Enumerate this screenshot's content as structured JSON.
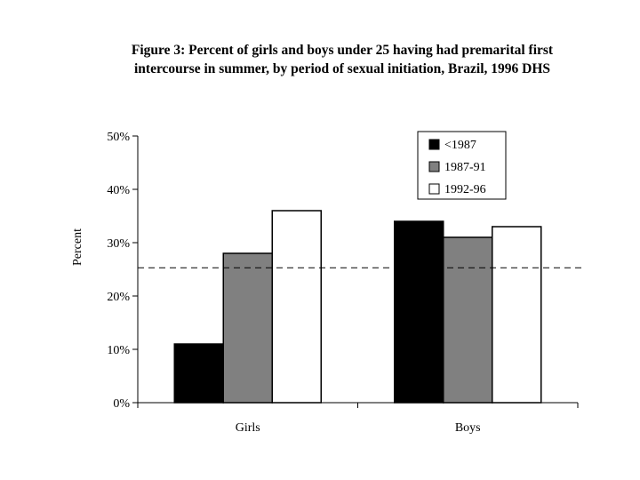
{
  "chart_data": {
    "type": "bar",
    "title_line1": "Figure 3: Percent of girls and boys under 25 having had premarital first",
    "title_line2": "intercourse in summer, by period of sexual initiation, Brazil, 1996 DHS",
    "ylabel": "Percent",
    "xlabel": "",
    "categories": [
      "Girls",
      "Boys"
    ],
    "series": [
      {
        "name": "<1987",
        "color": "#000000",
        "values": [
          11,
          34
        ]
      },
      {
        "name": "1987-91",
        "color": "#808080",
        "values": [
          28,
          31
        ]
      },
      {
        "name": "1992-96",
        "color": "#ffffff",
        "values": [
          36,
          33
        ]
      }
    ],
    "ylim": [
      0,
      50
    ],
    "yticks": [
      0,
      10,
      20,
      30,
      40,
      50
    ],
    "ytick_labels": [
      "0%",
      "10%",
      "20%",
      "30%",
      "40%",
      "50%"
    ],
    "reference_line": 25.3,
    "reference_line_style": "dashed",
    "grid": false,
    "legend_position": "top-right"
  }
}
